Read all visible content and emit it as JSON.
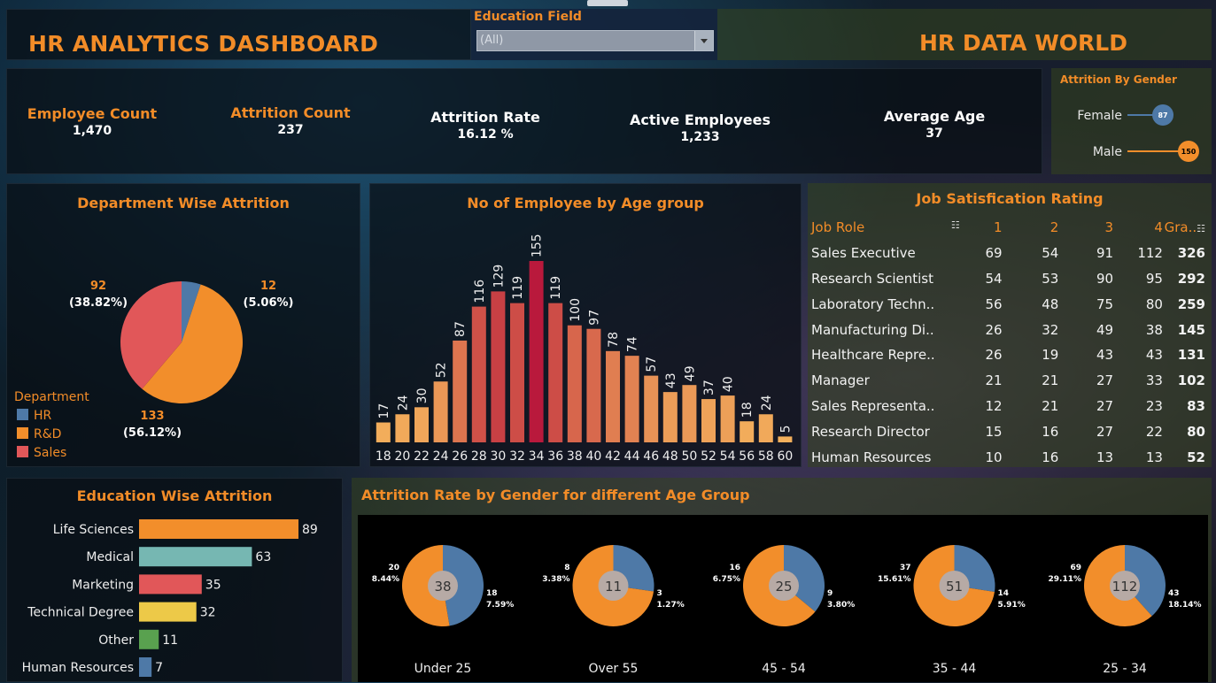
{
  "header": {
    "title": "HR ANALYTICS DASHBOARD",
    "right_title": "HR DATA WORLD",
    "filter": {
      "label": "Education Field",
      "value": "(All)"
    }
  },
  "kpis": [
    {
      "label": "Employee Count",
      "value": "1,470",
      "accent": true
    },
    {
      "label": "Attrition Count",
      "value": "237",
      "accent": true
    },
    {
      "label": "Attrition Rate",
      "value": "16.12 %",
      "accent": false
    },
    {
      "label": "Active Employees",
      "value": "1,233",
      "accent": false
    },
    {
      "label": "Average Age",
      "value": "37",
      "accent": false
    }
  ],
  "gender_attrition": {
    "title": "Attrition By Gender",
    "max": 150,
    "items": [
      {
        "label": "Female",
        "value": 87,
        "color": "#4e79a7"
      },
      {
        "label": "Male",
        "value": 150,
        "color": "#f28e2b"
      }
    ]
  },
  "chart_data": [
    {
      "type": "pie",
      "title": "Department Wise Attrition",
      "legend_title": "Department",
      "slices": [
        {
          "name": "HR",
          "value": 12,
          "label": "12",
          "pct": "(5.06%)",
          "color": "#4e79a7"
        },
        {
          "name": "R&D",
          "value": 133,
          "label": "133",
          "pct": "(56.12%)",
          "color": "#f28e2b"
        },
        {
          "name": "Sales",
          "value": 92,
          "label": "92",
          "pct": "(38.82%)",
          "color": "#e15759"
        }
      ]
    },
    {
      "type": "bar",
      "title": "No of Employee by Age group",
      "categories": [
        "18",
        "20",
        "22",
        "24",
        "26",
        "28",
        "30",
        "32",
        "34",
        "36",
        "38",
        "40",
        "42",
        "44",
        "46",
        "48",
        "50",
        "52",
        "54",
        "56",
        "58",
        "60"
      ],
      "values": [
        17,
        24,
        30,
        52,
        87,
        116,
        129,
        119,
        155,
        119,
        100,
        97,
        78,
        74,
        57,
        43,
        49,
        37,
        40,
        18,
        24,
        5
      ],
      "ylim": [
        0,
        155
      ]
    },
    {
      "type": "table",
      "title": "Job Satisfication Rating",
      "columns": [
        "Job Role",
        "1",
        "2",
        "3",
        "4",
        "Gra.."
      ],
      "rows": [
        [
          "Sales Executive",
          69,
          54,
          91,
          112,
          326
        ],
        [
          "Research Scientist",
          54,
          53,
          90,
          95,
          292
        ],
        [
          "Laboratory Techn..",
          56,
          48,
          75,
          80,
          259
        ],
        [
          "Manufacturing Di..",
          26,
          32,
          49,
          38,
          145
        ],
        [
          "Healthcare Repre..",
          26,
          19,
          43,
          43,
          131
        ],
        [
          "Manager",
          21,
          21,
          27,
          33,
          102
        ],
        [
          "Sales Representa..",
          12,
          21,
          27,
          23,
          83
        ],
        [
          "Research Director",
          15,
          16,
          27,
          22,
          80
        ],
        [
          "Human Resources",
          10,
          16,
          13,
          13,
          52
        ]
      ]
    },
    {
      "type": "bar",
      "title": "Education Wise Attrition",
      "categories": [
        "Life Sciences",
        "Medical",
        "Marketing",
        "Technical Degree",
        "Other",
        "Human Resources"
      ],
      "values": [
        89,
        63,
        35,
        32,
        11,
        7
      ],
      "colors": [
        "#f28e2b",
        "#76b7b2",
        "#e15759",
        "#edc948",
        "#59a14f",
        "#4e79a7"
      ]
    },
    {
      "type": "pie",
      "title": "Attrition Rate by Gender for different Age Group",
      "groups": [
        {
          "name": "Under 25",
          "total": 38,
          "female": 18,
          "female_pct": "7.59%",
          "male": 20,
          "male_pct": "8.44%"
        },
        {
          "name": "Over 55",
          "total": 11,
          "female": 3,
          "female_pct": "1.27%",
          "male": 8,
          "male_pct": "3.38%"
        },
        {
          "name": "45 - 54",
          "total": 25,
          "female": 9,
          "female_pct": "3.80%",
          "male": 16,
          "male_pct": "6.75%"
        },
        {
          "name": "35 - 44",
          "total": 51,
          "female": 14,
          "female_pct": "5.91%",
          "male": 37,
          "male_pct": "15.61%"
        },
        {
          "name": "25 - 34",
          "total": 112,
          "female": 43,
          "female_pct": "18.14%",
          "male": 69,
          "male_pct": "29.11%"
        }
      ]
    }
  ]
}
